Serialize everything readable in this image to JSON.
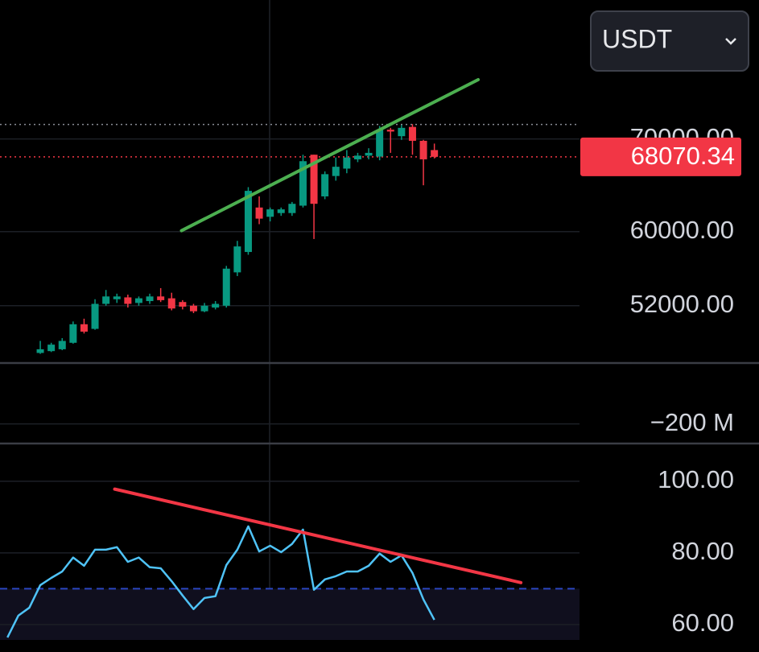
{
  "currency_selector": {
    "label": "USDT"
  },
  "chart_data": [
    {
      "type": "candlestick",
      "x": [
        0,
        1,
        2,
        3,
        4,
        5,
        6,
        7,
        8,
        9,
        10,
        11,
        12,
        13,
        14,
        15,
        16,
        17,
        18,
        19,
        20,
        21,
        22,
        23,
        24,
        25,
        26,
        27,
        28,
        29,
        30,
        31,
        32,
        33,
        34,
        35,
        36
      ],
      "open": [
        46900,
        47100,
        47300,
        48000,
        50000,
        49500,
        52200,
        52700,
        52900,
        52300,
        52500,
        53000,
        52800,
        52400,
        52000,
        51400,
        51800,
        52000,
        55600,
        57800,
        62600,
        61600,
        62000,
        62000,
        62800,
        68300,
        63800,
        66000,
        66800,
        67800,
        68200,
        68100,
        71000,
        70300,
        71300,
        69800,
        68800
      ],
      "close": [
        47300,
        47800,
        48200,
        50000,
        49200,
        52200,
        53000,
        53000,
        52200,
        52800,
        53000,
        52600,
        51700,
        51900,
        51400,
        52000,
        52200,
        56000,
        58400,
        64400,
        61400,
        62400,
        62400,
        63000,
        67600,
        63000,
        66200,
        67000,
        68000,
        68200,
        68500,
        71000,
        70800,
        71200,
        69800,
        67800,
        68070.34
      ],
      "high": [
        48200,
        48000,
        48500,
        50300,
        50600,
        52700,
        53700,
        53300,
        53200,
        53000,
        53300,
        53900,
        53400,
        52600,
        52200,
        52300,
        52500,
        56300,
        59000,
        64800,
        63800,
        62600,
        62600,
        63200,
        68300,
        68300,
        66500,
        68000,
        68800,
        68500,
        69000,
        71400,
        71200,
        71500,
        71600,
        69900,
        69500
      ],
      "low": [
        46800,
        47000,
        47200,
        47900,
        49000,
        49400,
        52000,
        52300,
        51800,
        52000,
        52200,
        52400,
        51500,
        51600,
        51200,
        51300,
        51600,
        51800,
        55200,
        57500,
        60800,
        61100,
        61700,
        61700,
        62600,
        59200,
        63500,
        65500,
        66300,
        67500,
        67800,
        67700,
        68500,
        69900,
        68300,
        65000,
        67900
      ],
      "up_color": "#089981",
      "down_color": "#f23645",
      "xlim": [
        -3.68,
        49.26
      ],
      "ylim": [
        45900,
        85000
      ],
      "yticks": [
        {
          "value": 52000,
          "label": "52000.00"
        },
        {
          "value": 60000,
          "label": "60000.00"
        },
        {
          "value": 70000,
          "label": "70000.00"
        }
      ],
      "last_price": 68070.34,
      "last_price_color": "#f23645",
      "high_line": 71560,
      "trendline": {
        "x": [
          12.9,
          40
        ],
        "y": [
          60100,
          76400
        ],
        "color": "#4caf50"
      }
    },
    {
      "type": "volume",
      "ylim": [
        -300000000,
        120000000
      ],
      "yticks": [
        {
          "value": -200000000,
          "label": "−200 M"
        }
      ]
    },
    {
      "type": "line",
      "x": [
        -3,
        -2,
        -1,
        0,
        1,
        2,
        3,
        4,
        5,
        6,
        7,
        8,
        9,
        10,
        11,
        12,
        13,
        14,
        15,
        16,
        17,
        18,
        19,
        20,
        21,
        22,
        23,
        24,
        25,
        26,
        27,
        28,
        29,
        30,
        31,
        32,
        33,
        34,
        35,
        36
      ],
      "values": [
        56.4,
        62.5,
        64.7,
        71.0,
        73.0,
        74.8,
        78.7,
        76.4,
        80.9,
        80.9,
        81.6,
        77.5,
        78.7,
        76.0,
        75.7,
        72.1,
        68.1,
        64.3,
        67.4,
        67.9,
        76.6,
        80.9,
        87.4,
        80.4,
        82.0,
        80.2,
        82.5,
        86.5,
        69.7,
        72.6,
        73.5,
        74.8,
        74.8,
        76.4,
        79.8,
        77.5,
        79.3,
        74.4,
        67.0,
        61.3
      ],
      "color": "#4fc3f7",
      "xlim": [
        -3.68,
        49.26
      ],
      "ylim": [
        55.7,
        110.3
      ],
      "yticks": [
        {
          "value": 60,
          "label": "60.00"
        },
        {
          "value": 80,
          "label": "80.00"
        },
        {
          "value": 100,
          "label": "100.00"
        }
      ],
      "level": 70,
      "trendline": {
        "x": [
          6.8,
          43.9
        ],
        "y": [
          97.8,
          71.7
        ],
        "color": "#f23645"
      }
    }
  ]
}
